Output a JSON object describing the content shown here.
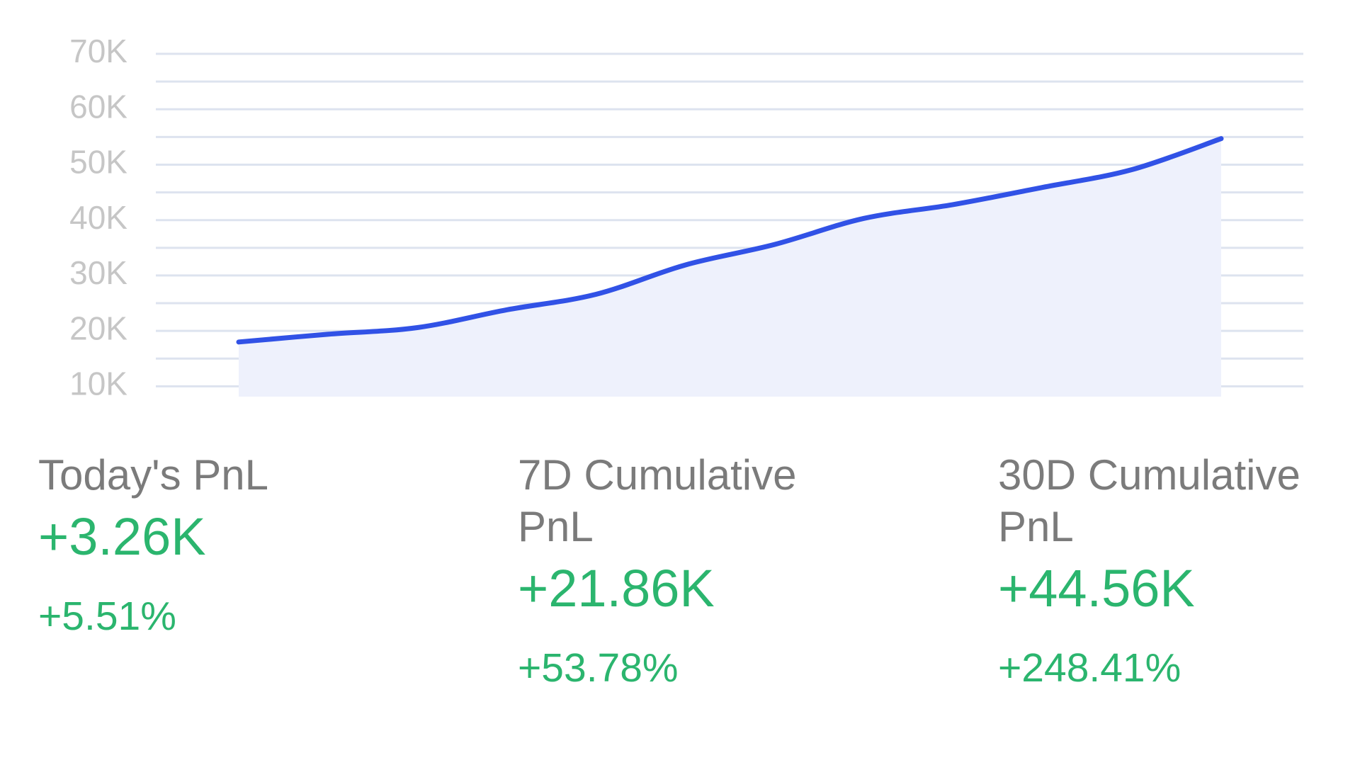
{
  "chart_data": {
    "type": "area",
    "values": [
      18000,
      19400,
      20600,
      23800,
      26600,
      31900,
      35600,
      40300,
      42800,
      45900,
      49100,
      54700
    ],
    "color": "#3152e6",
    "fill": "#eef1fc",
    "ylim": [
      9000,
      71500
    ],
    "yticks": [
      {
        "value": 70000,
        "label": "70K"
      },
      {
        "value": 60000,
        "label": "60K"
      },
      {
        "value": 50000,
        "label": "50K"
      },
      {
        "value": 40000,
        "label": "40K"
      },
      {
        "value": 30000,
        "label": "30K"
      },
      {
        "value": 20000,
        "label": "20K"
      },
      {
        "value": 10000,
        "label": "10K"
      }
    ],
    "minor_yticks": [
      65000,
      55000,
      45000,
      35000,
      25000,
      15000
    ],
    "grid": true
  },
  "stats": [
    {
      "label": "Today's PnL",
      "value": "+3.26K",
      "change": "+5.51%"
    },
    {
      "label": "7D Cumulative PnL",
      "value": "+21.86K",
      "change": "+53.78%"
    },
    {
      "label": "30D Cumulative PnL",
      "value": "+44.56K",
      "change": "+248.41%"
    }
  ]
}
